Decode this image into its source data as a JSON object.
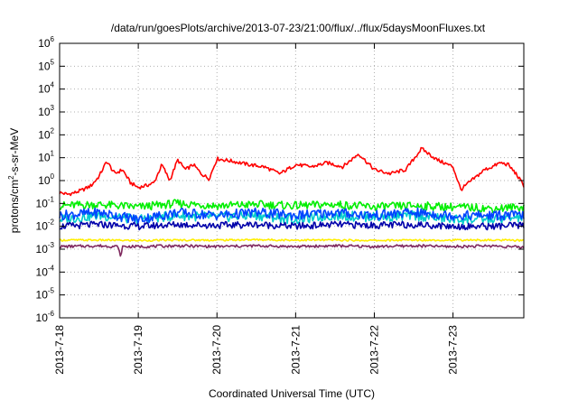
{
  "chart_data": {
    "type": "line",
    "title": "/data/run/goesPlots/archive/2013-07-23/21:00/flux/../flux/5daysMoonFluxes.txt",
    "xlabel": "Coordinated Universal Time (UTC)",
    "ylabel_parts": {
      "pre": "protons/cm",
      "sup": "2",
      "post": "-s-sr-MeV"
    },
    "ylabel": "protons/cm2-s-sr-MeV",
    "y_scale": "log",
    "ylim": [
      1e-06,
      1000000.0
    ],
    "y_ticks": [
      {
        "base": "10",
        "exp": "-6",
        "value": 1e-06
      },
      {
        "base": "10",
        "exp": "-5",
        "value": 1e-05
      },
      {
        "base": "10",
        "exp": "-4",
        "value": 0.0001
      },
      {
        "base": "10",
        "exp": "-3",
        "value": 0.001
      },
      {
        "base": "10",
        "exp": "-2",
        "value": 0.01
      },
      {
        "base": "10",
        "exp": "-1",
        "value": 0.1
      },
      {
        "base": "10",
        "exp": "0",
        "value": 1
      },
      {
        "base": "10",
        "exp": "1",
        "value": 10
      },
      {
        "base": "10",
        "exp": "2",
        "value": 100
      },
      {
        "base": "10",
        "exp": "3",
        "value": 1000
      },
      {
        "base": "10",
        "exp": "4",
        "value": 10000
      },
      {
        "base": "10",
        "exp": "5",
        "value": 100000
      },
      {
        "base": "10",
        "exp": "6",
        "value": 1000000
      }
    ],
    "xlim_days": [
      0,
      5.9
    ],
    "x_ticks": [
      {
        "label": "2013-7-18",
        "day": 0
      },
      {
        "label": "2013-7-19",
        "day": 1
      },
      {
        "label": "2013-7-20",
        "day": 2
      },
      {
        "label": "2013-7-21",
        "day": 3
      },
      {
        "label": "2013-7-22",
        "day": 4
      },
      {
        "label": "2013-7-23",
        "day": 5
      }
    ],
    "grid": true,
    "legend": "none",
    "series": [
      {
        "color": "#ff0000",
        "x": [
          0,
          0.1,
          0.2,
          0.3,
          0.4,
          0.5,
          0.6,
          0.7,
          0.8,
          0.9,
          1.0,
          1.1,
          1.2,
          1.3,
          1.4,
          1.5,
          1.6,
          1.7,
          1.8,
          1.9,
          2.0,
          2.2,
          2.4,
          2.6,
          2.8,
          3.0,
          3.2,
          3.4,
          3.6,
          3.8,
          4.0,
          4.2,
          4.4,
          4.6,
          4.8,
          5.0,
          5.1,
          5.2,
          5.3,
          5.4,
          5.5,
          5.6,
          5.7,
          5.8,
          5.9
        ],
        "y": [
          0.3,
          0.25,
          0.3,
          0.4,
          0.6,
          1.5,
          7,
          2,
          3,
          0.8,
          0.5,
          0.6,
          0.8,
          5,
          1,
          8,
          3,
          5,
          2,
          1.2,
          9,
          7,
          5,
          4,
          2,
          5,
          4,
          6,
          4,
          15,
          3,
          2,
          3,
          25,
          8,
          4,
          0.4,
          0.8,
          1.5,
          3,
          4,
          6,
          5,
          2,
          0.6
        ]
      },
      {
        "color": "#00ee00",
        "x": [
          0,
          0.5,
          1.0,
          1.5,
          2.0,
          2.5,
          3.0,
          3.5,
          4.0,
          4.5,
          5.0,
          5.5,
          5.9
        ],
        "y": [
          0.08,
          0.09,
          0.07,
          0.1,
          0.08,
          0.09,
          0.08,
          0.09,
          0.07,
          0.08,
          0.07,
          0.06,
          0.07
        ]
      },
      {
        "color": "#00cccc",
        "x": [
          0,
          0.5,
          1.0,
          1.5,
          2.0,
          2.5,
          3.0,
          3.5,
          4.0,
          4.5,
          5.0,
          5.5,
          5.9
        ],
        "y": [
          0.02,
          0.03,
          0.02,
          0.03,
          0.025,
          0.03,
          0.02,
          0.03,
          0.025,
          0.03,
          0.02,
          0.02,
          0.025
        ]
      },
      {
        "color": "#0044ff",
        "x": [
          0,
          0.5,
          1.0,
          1.5,
          2.0,
          2.5,
          3.0,
          3.5,
          4.0,
          4.5,
          5.0,
          5.5,
          5.9
        ],
        "y": [
          0.03,
          0.04,
          0.02,
          0.04,
          0.03,
          0.04,
          0.03,
          0.04,
          0.03,
          0.04,
          0.03,
          0.03,
          0.03
        ]
      },
      {
        "color": "#0000aa",
        "x": [
          0,
          0.5,
          1.0,
          1.5,
          2.0,
          2.5,
          3.0,
          3.5,
          4.0,
          4.5,
          5.0,
          5.5,
          5.9
        ],
        "y": [
          0.01,
          0.012,
          0.01,
          0.012,
          0.011,
          0.012,
          0.01,
          0.012,
          0.011,
          0.012,
          0.01,
          0.01,
          0.011
        ]
      },
      {
        "color": "#ffee00",
        "x": [
          0,
          0.5,
          1.0,
          1.5,
          2.0,
          2.5,
          3.0,
          3.5,
          4.0,
          4.5,
          5.0,
          5.5,
          5.9
        ],
        "y": [
          0.0025,
          0.0025,
          0.0024,
          0.0025,
          0.0025,
          0.0026,
          0.0025,
          0.0025,
          0.0024,
          0.0025,
          0.0025,
          0.0025,
          0.0024
        ]
      },
      {
        "color": "#7f2a5f",
        "x": [
          0,
          0.5,
          0.75,
          0.77,
          0.8,
          1.0,
          1.5,
          2.0,
          2.5,
          3.0,
          3.5,
          4.0,
          4.5,
          5.0,
          5.5,
          5.9
        ],
        "y": [
          0.0013,
          0.0014,
          0.0013,
          0.0004,
          0.0013,
          0.0013,
          0.0014,
          0.0013,
          0.0014,
          0.0013,
          0.0014,
          0.0013,
          0.0014,
          0.0013,
          0.0014,
          0.0012
        ]
      }
    ]
  }
}
